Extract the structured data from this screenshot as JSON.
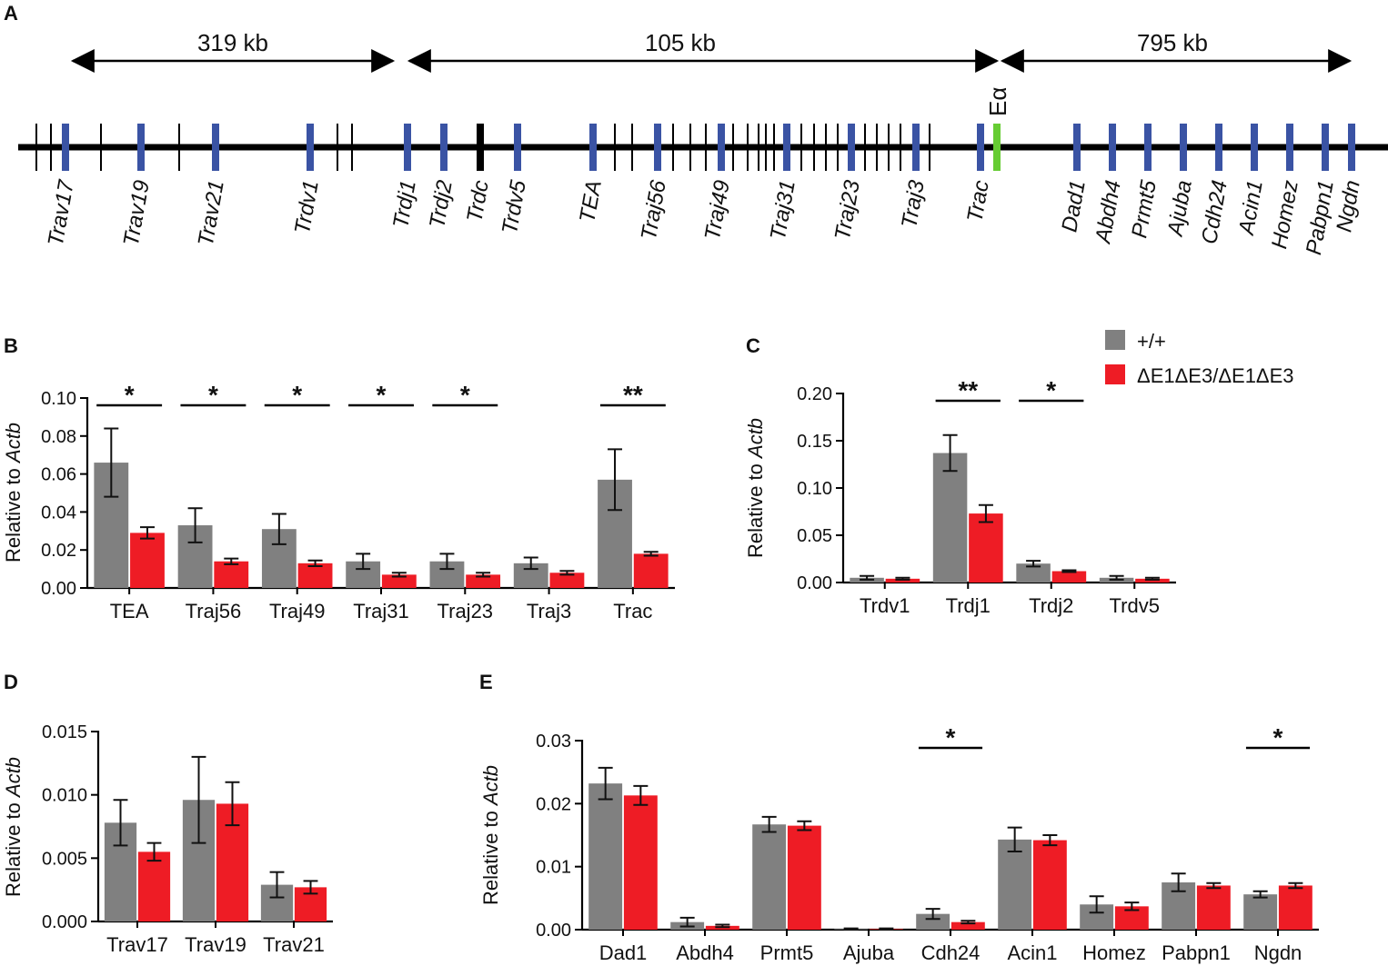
{
  "colors": {
    "wt": "#808080",
    "mut": "#ee1c25",
    "gene_blue": "#3a53a4",
    "enhancer": "#66cc33",
    "axis": "#000000"
  },
  "panel_a": {
    "label": "A",
    "distances": [
      {
        "text": "319 kb"
      },
      {
        "text": "105 kb"
      },
      {
        "text": "795 kb"
      }
    ],
    "enhancer_label": "Eα",
    "genes": [
      "Trav17",
      "Trav19",
      "Trav21",
      "Trdv1",
      "Trdj1",
      "Trdj2",
      "Trdc",
      "Trdv5",
      "TEA",
      "Traj56",
      "Traj49",
      "Traj31",
      "Traj23",
      "Traj3",
      "Trac",
      "Dad1",
      "Abdh4",
      "Prmt5",
      "Ajuba",
      "Cdh24",
      "Acin1",
      "Homez",
      "Pabpn1",
      "Ngdn"
    ]
  },
  "legend": {
    "wt_label": "+/+",
    "mut_label": "ΔE1ΔE3/ΔE1ΔE3"
  },
  "ylabel_prefix": "Relative to ",
  "ylabel_gene": "Actb",
  "chart_data": [
    {
      "panel": "B",
      "type": "bar",
      "categories": [
        "TEA",
        "Traj56",
        "Traj49",
        "Traj31",
        "Traj23",
        "Traj3",
        "Trac"
      ],
      "series": [
        {
          "name": "+/+",
          "values": [
            0.066,
            0.033,
            0.031,
            0.014,
            0.014,
            0.013,
            0.057
          ],
          "errors": [
            0.018,
            0.009,
            0.008,
            0.004,
            0.004,
            0.003,
            0.016
          ]
        },
        {
          "name": "ΔE1ΔE3/ΔE1ΔE3",
          "values": [
            0.029,
            0.014,
            0.013,
            0.007,
            0.007,
            0.008,
            0.018
          ],
          "errors": [
            0.003,
            0.0015,
            0.0015,
            0.001,
            0.001,
            0.001,
            0.001
          ]
        }
      ],
      "significance": [
        "*",
        "*",
        "*",
        "*",
        "*",
        "",
        "**"
      ],
      "ylim": [
        0,
        0.1
      ],
      "yticks": [
        "0.00",
        "0.02",
        "0.04",
        "0.06",
        "0.08",
        "0.10"
      ],
      "ylabel": "Relative to Actb"
    },
    {
      "panel": "C",
      "type": "bar",
      "categories": [
        "Trdv1",
        "Trdj1",
        "Trdj2",
        "Trdv5"
      ],
      "series": [
        {
          "name": "+/+",
          "values": [
            0.005,
            0.137,
            0.02,
            0.005
          ],
          "errors": [
            0.002,
            0.019,
            0.003,
            0.002
          ]
        },
        {
          "name": "ΔE1ΔE3/ΔE1ΔE3",
          "values": [
            0.004,
            0.073,
            0.012,
            0.004
          ],
          "errors": [
            0.001,
            0.009,
            0.001,
            0.001
          ]
        }
      ],
      "significance": [
        "",
        "**",
        "*",
        ""
      ],
      "ylim": [
        0,
        0.2
      ],
      "yticks": [
        "0.00",
        "0.05",
        "0.10",
        "0.15",
        "0.20"
      ],
      "ylabel": "Relative to Actb"
    },
    {
      "panel": "D",
      "type": "bar",
      "categories": [
        "Trav17",
        "Trav19",
        "Trav21"
      ],
      "series": [
        {
          "name": "+/+",
          "values": [
            0.0078,
            0.0096,
            0.0029
          ],
          "errors": [
            0.0018,
            0.0034,
            0.001
          ]
        },
        {
          "name": "ΔE1ΔE3/ΔE1ΔE3",
          "values": [
            0.0055,
            0.0093,
            0.0027
          ],
          "errors": [
            0.0007,
            0.0017,
            0.0005
          ]
        }
      ],
      "significance": [
        "",
        "",
        ""
      ],
      "ylim": [
        0,
        0.015
      ],
      "yticks": [
        "0.000",
        "0.005",
        "0.010",
        "0.015"
      ],
      "ylabel": "Relative to Actb"
    },
    {
      "panel": "E",
      "type": "bar",
      "categories": [
        "Dad1",
        "Abdh4",
        "Prmt5",
        "Ajuba",
        "Cdh24",
        "Acin1",
        "Homez",
        "Pabpn1",
        "Ngdn"
      ],
      "series": [
        {
          "name": "+/+",
          "values": [
            0.0232,
            0.0012,
            0.0167,
            0.0001,
            0.0025,
            0.0143,
            0.004,
            0.0075,
            0.0056
          ],
          "errors": [
            0.0025,
            0.0007,
            0.0012,
            0.0001,
            0.0008,
            0.0019,
            0.0013,
            0.0014,
            0.0005
          ]
        },
        {
          "name": "ΔE1ΔE3/ΔE1ΔE3",
          "values": [
            0.0213,
            0.0006,
            0.0165,
            0.0001,
            0.0012,
            0.0142,
            0.0037,
            0.007,
            0.007
          ],
          "errors": [
            0.0015,
            0.0002,
            0.0007,
            0.0001,
            0.0002,
            0.0008,
            0.0006,
            0.0004,
            0.0004
          ]
        }
      ],
      "significance": [
        "",
        "",
        "",
        "",
        "*",
        "",
        "",
        "",
        "*"
      ],
      "ylim": [
        0,
        0.03
      ],
      "yticks": [
        "0.00",
        "0.01",
        "0.02",
        "0.03"
      ],
      "ylabel": "Relative to Actb"
    }
  ]
}
